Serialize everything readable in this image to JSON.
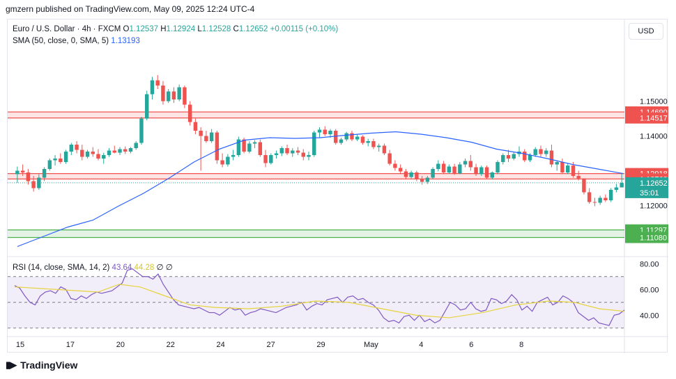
{
  "attribution": "gmzern published on TradingView.com, May 09, 2025 12:24 UTC-4",
  "footer": {
    "brand": "TradingView",
    "logo_icon": "tradingview-logo-icon"
  },
  "currency": "USD",
  "legend": {
    "symbol": "Euro / U.S. Dollar · 4h · FXCM",
    "o_label": "O",
    "o": "1.12537",
    "h_label": "H",
    "h": "1.12924",
    "l_label": "L",
    "l": "1.12528",
    "c_label": "C",
    "c": "1.12652",
    "change": "+0.00115 (+0.10%)",
    "sma_label": "SMA (50, close, 0, SMA, 5)",
    "sma_value": "1.13193"
  },
  "rsi_legend": {
    "label": "RSI (14, close, SMA, 14, 2)",
    "rsi_value": "43.64",
    "sma_value": "44.28",
    "extra1": "∅",
    "extra2": "∅"
  },
  "colors": {
    "up": "#26a69a",
    "down": "#ef5350",
    "sma": "#2962ff",
    "rsi": "#7e57c2",
    "rsi_ma": "#e6d33b",
    "resistance": "#ef5350",
    "support": "#4caf50"
  },
  "chart_data": {
    "type": "candlestick",
    "price_axis": {
      "ticks": [
        "1.15000",
        "1.14000",
        "1.12000"
      ],
      "ylim": [
        1.1055,
        1.1735
      ]
    },
    "x_ticks": [
      "15",
      "17",
      "20",
      "22",
      "24",
      "27",
      "29",
      "May",
      "4",
      "6",
      "8"
    ],
    "x_tick_index": [
      0,
      12,
      24,
      36,
      48,
      60,
      72,
      84,
      96,
      108,
      120
    ],
    "candles_ohlc": [
      [
        1.129,
        1.1312,
        1.1265,
        1.13
      ],
      [
        1.13,
        1.1318,
        1.1285,
        1.1295
      ],
      [
        1.1295,
        1.1305,
        1.126,
        1.127
      ],
      [
        1.127,
        1.1285,
        1.124,
        1.125
      ],
      [
        1.125,
        1.129,
        1.1245,
        1.128
      ],
      [
        1.128,
        1.131,
        1.127,
        1.1305
      ],
      [
        1.1305,
        1.1335,
        1.13,
        1.133
      ],
      [
        1.133,
        1.1345,
        1.1315,
        1.1335
      ],
      [
        1.1335,
        1.135,
        1.132,
        1.1325
      ],
      [
        1.1325,
        1.136,
        1.132,
        1.1355
      ],
      [
        1.1355,
        1.138,
        1.1345,
        1.1375
      ],
      [
        1.1375,
        1.1385,
        1.135,
        1.136
      ],
      [
        1.136,
        1.1375,
        1.133,
        1.134
      ],
      [
        1.134,
        1.136,
        1.1335,
        1.1355
      ],
      [
        1.1355,
        1.1368,
        1.134,
        1.1348
      ],
      [
        1.1348,
        1.1362,
        1.133,
        1.1335
      ],
      [
        1.1335,
        1.1352,
        1.132,
        1.1345
      ],
      [
        1.1345,
        1.1365,
        1.134,
        1.1358
      ],
      [
        1.1358,
        1.1372,
        1.135,
        1.1352
      ],
      [
        1.1352,
        1.1368,
        1.1345,
        1.1362
      ],
      [
        1.1362,
        1.137,
        1.1348,
        1.1355
      ],
      [
        1.1355,
        1.1368,
        1.135,
        1.1365
      ],
      [
        1.1365,
        1.1385,
        1.136,
        1.138
      ],
      [
        1.138,
        1.1455,
        1.1375,
        1.145
      ],
      [
        1.145,
        1.153,
        1.1445,
        1.152
      ],
      [
        1.152,
        1.157,
        1.1505,
        1.156
      ],
      [
        1.156,
        1.1575,
        1.1535,
        1.1545
      ],
      [
        1.1545,
        1.1558,
        1.149,
        1.15
      ],
      [
        1.15,
        1.1535,
        1.1495,
        1.1528
      ],
      [
        1.1528,
        1.154,
        1.1495,
        1.1505
      ],
      [
        1.1505,
        1.1548,
        1.15,
        1.154
      ],
      [
        1.154,
        1.1545,
        1.148,
        1.149
      ],
      [
        1.149,
        1.15,
        1.143,
        1.144
      ],
      [
        1.144,
        1.145,
        1.1405,
        1.1415
      ],
      [
        1.1415,
        1.1425,
        1.13,
        1.14
      ],
      [
        1.14,
        1.1415,
        1.138,
        1.1385
      ],
      [
        1.1385,
        1.142,
        1.138,
        1.141
      ],
      [
        1.141,
        1.1415,
        1.132,
        1.133
      ],
      [
        1.133,
        1.135,
        1.131,
        1.1318
      ],
      [
        1.1318,
        1.1348,
        1.1312,
        1.134
      ],
      [
        1.134,
        1.136,
        1.133,
        1.1345
      ],
      [
        1.1345,
        1.1398,
        1.134,
        1.139
      ],
      [
        1.139,
        1.1395,
        1.135,
        1.1355
      ],
      [
        1.1355,
        1.1385,
        1.135,
        1.1378
      ],
      [
        1.1378,
        1.1388,
        1.1365,
        1.1382
      ],
      [
        1.1382,
        1.139,
        1.134,
        1.1345
      ],
      [
        1.1345,
        1.136,
        1.131,
        1.1322
      ],
      [
        1.1322,
        1.135,
        1.1318,
        1.1345
      ],
      [
        1.1345,
        1.1358,
        1.1335,
        1.135
      ],
      [
        1.135,
        1.137,
        1.1342,
        1.1365
      ],
      [
        1.1365,
        1.1375,
        1.1345,
        1.135
      ],
      [
        1.135,
        1.1365,
        1.134,
        1.1358
      ],
      [
        1.1358,
        1.1368,
        1.1345,
        1.1352
      ],
      [
        1.1352,
        1.1362,
        1.133,
        1.134
      ],
      [
        1.134,
        1.1355,
        1.133,
        1.1345
      ],
      [
        1.1345,
        1.1415,
        1.134,
        1.141
      ],
      [
        1.141,
        1.1425,
        1.1395,
        1.1418
      ],
      [
        1.1418,
        1.1428,
        1.14,
        1.1405
      ],
      [
        1.1405,
        1.142,
        1.1395,
        1.1415
      ],
      [
        1.1415,
        1.142,
        1.1375,
        1.138
      ],
      [
        1.138,
        1.1395,
        1.1375,
        1.139
      ],
      [
        1.139,
        1.1412,
        1.1385,
        1.1408
      ],
      [
        1.1408,
        1.1415,
        1.1385,
        1.139
      ],
      [
        1.139,
        1.1405,
        1.1385,
        1.1398
      ],
      [
        1.1398,
        1.1402,
        1.1375,
        1.138
      ],
      [
        1.138,
        1.1392,
        1.137,
        1.1385
      ],
      [
        1.1385,
        1.1392,
        1.1362,
        1.1368
      ],
      [
        1.1368,
        1.1378,
        1.1355,
        1.1372
      ],
      [
        1.1372,
        1.1378,
        1.1345,
        1.135
      ],
      [
        1.135,
        1.136,
        1.1315,
        1.132
      ],
      [
        1.132,
        1.133,
        1.13,
        1.1308
      ],
      [
        1.1308,
        1.1318,
        1.129,
        1.1298
      ],
      [
        1.1298,
        1.1305,
        1.1275,
        1.1282
      ],
      [
        1.1282,
        1.13,
        1.1278,
        1.1295
      ],
      [
        1.1295,
        1.13,
        1.127,
        1.1275
      ],
      [
        1.1275,
        1.1285,
        1.126,
        1.1268
      ],
      [
        1.1268,
        1.1285,
        1.1262,
        1.128
      ],
      [
        1.128,
        1.131,
        1.1275,
        1.1305
      ],
      [
        1.1305,
        1.133,
        1.1298,
        1.132
      ],
      [
        1.132,
        1.1328,
        1.129,
        1.1295
      ],
      [
        1.1295,
        1.1318,
        1.1292,
        1.1312
      ],
      [
        1.1312,
        1.132,
        1.1288,
        1.1292
      ],
      [
        1.1292,
        1.1325,
        1.129,
        1.1318
      ],
      [
        1.1318,
        1.1335,
        1.131,
        1.1328
      ],
      [
        1.1328,
        1.1345,
        1.13,
        1.131
      ],
      [
        1.131,
        1.132,
        1.1285,
        1.129
      ],
      [
        1.129,
        1.1315,
        1.1285,
        1.131
      ],
      [
        1.131,
        1.1315,
        1.1275,
        1.128
      ],
      [
        1.128,
        1.1298,
        1.1275,
        1.1295
      ],
      [
        1.1295,
        1.133,
        1.129,
        1.1325
      ],
      [
        1.1325,
        1.135,
        1.1318,
        1.1345
      ],
      [
        1.1345,
        1.136,
        1.1325,
        1.1335
      ],
      [
        1.1335,
        1.1355,
        1.133,
        1.1348
      ],
      [
        1.1348,
        1.137,
        1.134,
        1.1355
      ],
      [
        1.1355,
        1.1362,
        1.1325,
        1.133
      ],
      [
        1.133,
        1.135,
        1.1325,
        1.1345
      ],
      [
        1.1345,
        1.1368,
        1.134,
        1.1362
      ],
      [
        1.1362,
        1.1372,
        1.134,
        1.1348
      ],
      [
        1.1348,
        1.1365,
        1.134,
        1.1358
      ],
      [
        1.1358,
        1.1375,
        1.131,
        1.1318
      ],
      [
        1.1318,
        1.133,
        1.13,
        1.1325
      ],
      [
        1.1325,
        1.1335,
        1.129,
        1.1295
      ],
      [
        1.1295,
        1.132,
        1.129,
        1.1315
      ],
      [
        1.1315,
        1.1325,
        1.128,
        1.1285
      ],
      [
        1.1285,
        1.13,
        1.1272,
        1.1278
      ],
      [
        1.1278,
        1.1262,
        1.1232,
        1.1238
      ],
      [
        1.1238,
        1.125,
        1.1205,
        1.121
      ],
      [
        1.121,
        1.1222,
        1.1198,
        1.1208
      ],
      [
        1.1208,
        1.1228,
        1.1202,
        1.1222
      ],
      [
        1.1222,
        1.1232,
        1.121,
        1.1215
      ],
      [
        1.1215,
        1.125,
        1.121,
        1.1245
      ],
      [
        1.1245,
        1.1262,
        1.1238,
        1.1252
      ],
      [
        1.1252,
        1.1292,
        1.1252,
        1.1265
      ]
    ],
    "sma": [
      [
        0,
        1.1082
      ],
      [
        6,
        1.111
      ],
      [
        12,
        1.1138
      ],
      [
        18,
        1.1158
      ],
      [
        24,
        1.1198
      ],
      [
        30,
        1.1235
      ],
      [
        36,
        1.1278
      ],
      [
        42,
        1.1325
      ],
      [
        48,
        1.1362
      ],
      [
        54,
        1.1388
      ],
      [
        60,
        1.1395
      ],
      [
        66,
        1.1393
      ],
      [
        72,
        1.1395
      ],
      [
        78,
        1.1402
      ],
      [
        84,
        1.1408
      ],
      [
        90,
        1.1412
      ],
      [
        96,
        1.1405
      ],
      [
        102,
        1.1395
      ],
      [
        108,
        1.1382
      ],
      [
        114,
        1.1362
      ],
      [
        120,
        1.135
      ],
      [
        126,
        1.1335
      ],
      [
        132,
        1.1318
      ],
      [
        138,
        1.1305
      ],
      [
        144,
        1.1292
      ]
    ],
    "price_labels": [
      {
        "value": 1.1469,
        "text": "1.14690",
        "color": "#ef5350"
      },
      {
        "value": 1.14517,
        "text": "1.14517",
        "color": "#ef5350"
      },
      {
        "value": 1.12918,
        "text": "1.12918",
        "color": "#ef5350"
      },
      {
        "value": 1.12762,
        "text": "1.12762",
        "color": "#ef5350"
      },
      {
        "value": 1.11297,
        "text": "1.11297",
        "color": "#4caf50"
      },
      {
        "value": 1.1108,
        "text": "1.11080",
        "color": "#4caf50"
      }
    ],
    "current_price": {
      "value": 1.12652,
      "text": "1.12652",
      "countdown": "35:01",
      "color": "#26a69a"
    },
    "zones": [
      {
        "from": 1.14517,
        "to": 1.1469,
        "kind": "resistance"
      },
      {
        "from": 1.12762,
        "to": 1.12918,
        "kind": "resistance"
      },
      {
        "from": 1.1108,
        "to": 1.11297,
        "kind": "support"
      }
    ],
    "rsi": {
      "ticks": [
        "80.00",
        "60.00",
        "40.00"
      ],
      "ylim": [
        25,
        85
      ],
      "bands": [
        30,
        50,
        70
      ],
      "rsi_line": [
        63,
        61,
        55,
        50,
        48,
        55,
        58,
        59,
        57,
        62,
        60,
        53,
        52,
        55,
        53,
        56,
        58,
        57,
        58,
        59,
        62,
        65,
        75,
        76,
        73,
        70,
        70,
        68,
        72,
        64,
        58,
        52,
        48,
        47,
        46,
        45,
        46,
        44,
        42,
        42,
        40,
        43,
        46,
        44,
        45,
        40,
        42,
        43,
        45,
        44,
        43,
        42,
        44,
        46,
        47,
        48,
        50,
        44,
        47,
        49,
        48,
        52,
        53,
        54,
        50,
        54,
        55,
        52,
        53,
        50,
        48,
        44,
        38,
        35,
        36,
        34,
        39,
        40,
        36,
        40,
        35,
        37,
        34,
        36,
        43,
        50,
        48,
        44,
        45,
        50,
        45,
        43,
        44,
        53,
        52,
        49,
        51,
        56,
        52,
        44,
        47,
        43,
        50,
        52,
        54,
        48,
        50,
        55,
        53,
        50,
        42,
        39,
        36,
        38,
        34,
        33,
        32,
        40,
        41,
        44
      ],
      "ma_line": [
        [
          0,
          62
        ],
        [
          10,
          60
        ],
        [
          20,
          58
        ],
        [
          25,
          64
        ],
        [
          30,
          62
        ],
        [
          36,
          55
        ],
        [
          42,
          48
        ],
        [
          48,
          46
        ],
        [
          56,
          45
        ],
        [
          64,
          47
        ],
        [
          72,
          51
        ],
        [
          80,
          50
        ],
        [
          88,
          45
        ],
        [
          96,
          40
        ],
        [
          104,
          38
        ],
        [
          112,
          42
        ],
        [
          120,
          48
        ],
        [
          128,
          51
        ],
        [
          134,
          50
        ],
        [
          140,
          45
        ],
        [
          146,
          43
        ]
      ]
    }
  }
}
